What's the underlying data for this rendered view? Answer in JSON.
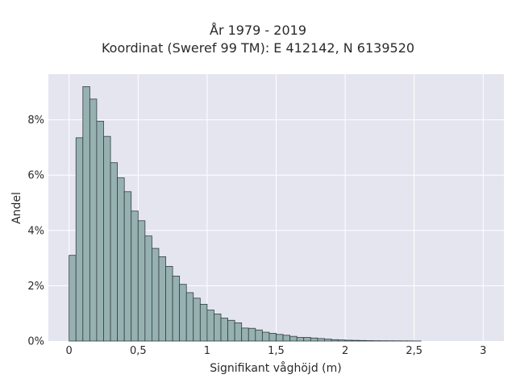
{
  "chart_data": {
    "type": "bar",
    "title_line1": "År 1979 - 2019",
    "title_line2": "Koordinat (Sweref 99 TM): E 412142, N 6139520",
    "xlabel": "Signifikant våghöjd (m)",
    "ylabel": "Andel",
    "xlim": [
      -0.15,
      3.15
    ],
    "ylim": [
      0,
      0.0965
    ],
    "bin_start": 0.0,
    "bin_width": 0.05,
    "x_ticks": [
      0,
      0.5,
      1,
      1.5,
      2,
      2.5,
      3
    ],
    "x_tick_labels": [
      "0",
      "0,5",
      "1",
      "1,5",
      "2",
      "2,5",
      "3"
    ],
    "y_ticks": [
      0,
      0.02,
      0.04,
      0.06,
      0.08
    ],
    "y_tick_labels": [
      "0%",
      "2%",
      "4%",
      "6%",
      "8%"
    ],
    "grid": true,
    "colors": {
      "bar_fill": "#97b1b1",
      "bar_stroke": "#2f3f3f",
      "plot_bg": "#e5e5f0",
      "grid": "#ffffff"
    },
    "values": [
      0.031,
      0.0735,
      0.092,
      0.0875,
      0.0795,
      0.074,
      0.0645,
      0.059,
      0.054,
      0.047,
      0.0435,
      0.038,
      0.0335,
      0.0305,
      0.027,
      0.0235,
      0.0205,
      0.0175,
      0.0155,
      0.0133,
      0.0112,
      0.0098,
      0.0083,
      0.0075,
      0.0066,
      0.0047,
      0.0046,
      0.004,
      0.0032,
      0.0028,
      0.0024,
      0.0021,
      0.0017,
      0.0013,
      0.0013,
      0.0011,
      0.0009,
      0.0007,
      0.0005,
      0.0004,
      0.0003,
      0.00025,
      0.0002,
      0.00015,
      0.00012,
      0.0001,
      9e-05,
      8e-05,
      6e-05,
      5e-05,
      3e-05
    ]
  }
}
